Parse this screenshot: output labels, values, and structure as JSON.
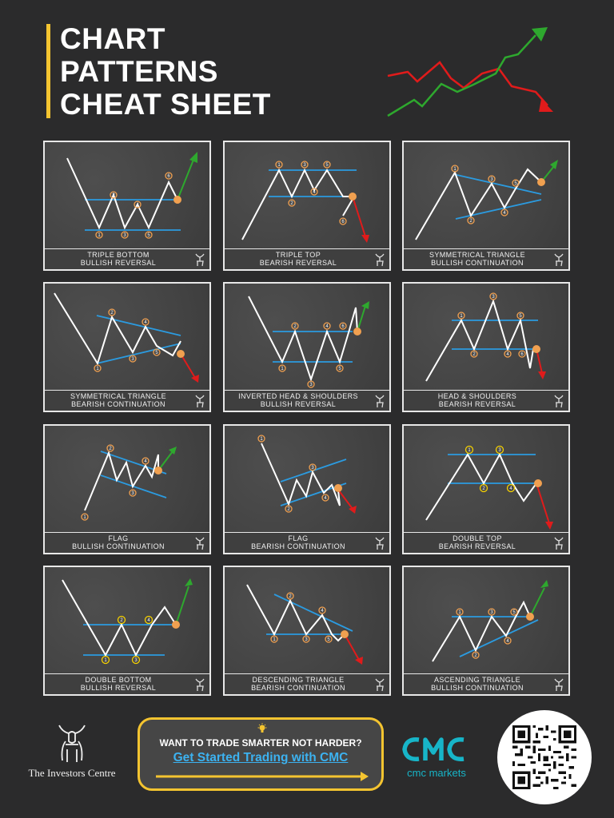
{
  "header": {
    "title_lines": [
      "CHART",
      "PATTERNS",
      "CHEAT SHEET"
    ],
    "accent_color": "#f4c430"
  },
  "cards": [
    {
      "line1": "TRIPLE BOTTOM",
      "line2": "BULLISH REVERSAL"
    },
    {
      "line1": "TRIPLE TOP",
      "line2": "BEARISH REVERSAL"
    },
    {
      "line1": "SYMMETRICAL TRIANGLE",
      "line2": "BULLISH CONTINUATION"
    },
    {
      "line1": "SYMMETRICAL TRIANGLE",
      "line2": "BEARISH CONTINUATION"
    },
    {
      "line1": "INVERTED HEAD & SHOULDERS",
      "line2": "BULLISH REVERSAL"
    },
    {
      "line1": "HEAD & SHOULDERS",
      "line2": "BEARISH REVERSAL"
    },
    {
      "line1": "FLAG",
      "line2": "BULLISH CONTINUATION"
    },
    {
      "line1": "FLAG",
      "line2": "BEARISH CONTINUATION"
    },
    {
      "line1": "DOUBLE TOP",
      "line2": "BEARISH REVERSAL"
    },
    {
      "line1": "DOUBLE BOTTOM",
      "line2": "BULLISH REVERSAL"
    },
    {
      "line1": "DESCENDING TRIANGLE",
      "line2": "BEARISH CONTINUATION"
    },
    {
      "line1": "ASCENDING TRIANGLE",
      "line2": "BULLISH CONTINUATION"
    }
  ],
  "footer": {
    "brand_name": "The Investors Centre",
    "cta_heading": "WANT TO TRADE SMARTER NOT HARDER?",
    "cta_link": "Get Started Trading with CMC",
    "partner_logo": "CMC",
    "partner_name": "cmc markets",
    "qr_icon": "qr-code-icon"
  },
  "colors": {
    "background": "#2b2b2c",
    "bullish": "#2ea82e",
    "bearish": "#e01b1b",
    "support_line": "#2b9be0",
    "marker": "#f0a050",
    "cta_border": "#f4c430",
    "cta_link": "#3cb2f0",
    "cmc_teal": "#17b5c8"
  }
}
